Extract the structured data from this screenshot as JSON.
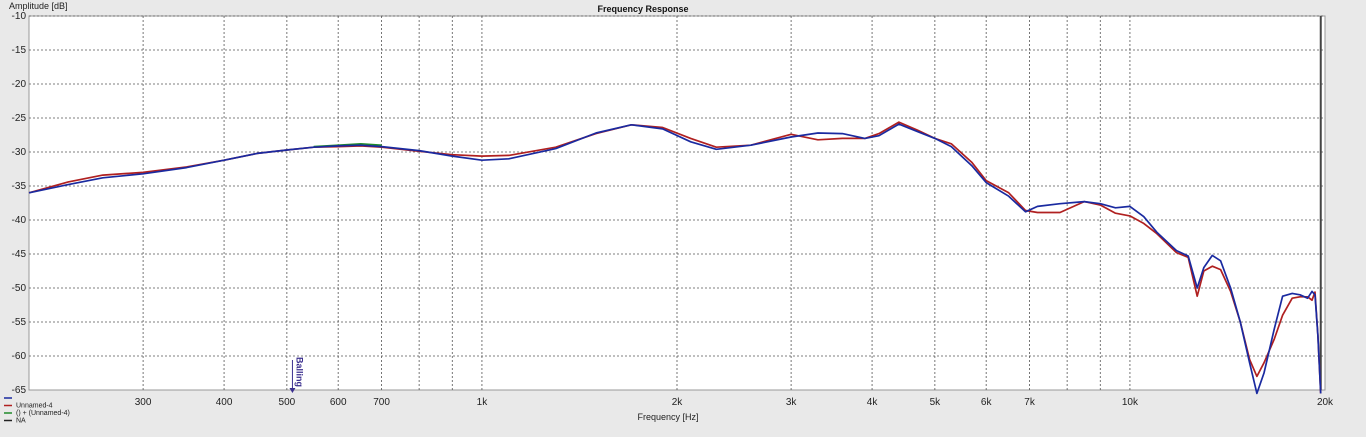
{
  "chart_data": {
    "type": "line",
    "title": "Frequency Response",
    "xlabel": "Frequency [Hz]",
    "ylabel": "Amplitude [dB]",
    "x_scale": "log",
    "xlim": [
      200,
      20000
    ],
    "ylim": [
      -65,
      -10
    ],
    "grid": true,
    "legend_position": "bottom-left",
    "x_ticks": [
      {
        "value": 300,
        "label": "300"
      },
      {
        "value": 400,
        "label": "400"
      },
      {
        "value": 500,
        "label": "500"
      },
      {
        "value": 600,
        "label": "600"
      },
      {
        "value": 700,
        "label": "700"
      },
      {
        "value": 1000,
        "label": "1k"
      },
      {
        "value": 2000,
        "label": "2k"
      },
      {
        "value": 3000,
        "label": "3k"
      },
      {
        "value": 4000,
        "label": "4k"
      },
      {
        "value": 5000,
        "label": "5k"
      },
      {
        "value": 6000,
        "label": "6k"
      },
      {
        "value": 7000,
        "label": "7k"
      },
      {
        "value": 10000,
        "label": "10k"
      },
      {
        "value": 20000,
        "label": "20k"
      }
    ],
    "x_minor_grid": [
      800,
      900,
      8000,
      9000
    ],
    "y_ticks": [
      -10,
      -15,
      -20,
      -25,
      -30,
      -35,
      -40,
      -45,
      -50,
      -55,
      -60,
      -65
    ],
    "series": [
      {
        "name": "",
        "color": "#1a2aa0",
        "points": [
          [
            200,
            -36
          ],
          [
            230,
            -34.8
          ],
          [
            260,
            -33.8
          ],
          [
            300,
            -33.2
          ],
          [
            350,
            -32.3
          ],
          [
            400,
            -31.2
          ],
          [
            450,
            -30.2
          ],
          [
            500,
            -29.7
          ],
          [
            550,
            -29.3
          ],
          [
            600,
            -29.1
          ],
          [
            650,
            -29.0
          ],
          [
            700,
            -29.2
          ],
          [
            800,
            -29.8
          ],
          [
            900,
            -30.6
          ],
          [
            1000,
            -31.2
          ],
          [
            1100,
            -31.0
          ],
          [
            1300,
            -29.5
          ],
          [
            1500,
            -27.2
          ],
          [
            1700,
            -26.0
          ],
          [
            1900,
            -26.6
          ],
          [
            2100,
            -28.5
          ],
          [
            2300,
            -29.6
          ],
          [
            2600,
            -29.0
          ],
          [
            3000,
            -27.8
          ],
          [
            3300,
            -27.2
          ],
          [
            3600,
            -27.3
          ],
          [
            3900,
            -28.0
          ],
          [
            4100,
            -27.6
          ],
          [
            4400,
            -25.9
          ],
          [
            4700,
            -27.0
          ],
          [
            5000,
            -28.0
          ],
          [
            5300,
            -29.2
          ],
          [
            5700,
            -32.0
          ],
          [
            6000,
            -34.5
          ],
          [
            6500,
            -36.5
          ],
          [
            6900,
            -38.8
          ],
          [
            7200,
            -38.0
          ],
          [
            7800,
            -37.6
          ],
          [
            8500,
            -37.3
          ],
          [
            9000,
            -37.6
          ],
          [
            9500,
            -38.2
          ],
          [
            10000,
            -38.0
          ],
          [
            10500,
            -39.5
          ],
          [
            11000,
            -41.8
          ],
          [
            11800,
            -44.5
          ],
          [
            12300,
            -45.3
          ],
          [
            12700,
            -50.0
          ],
          [
            13000,
            -47.0
          ],
          [
            13400,
            -45.2
          ],
          [
            13800,
            -46.0
          ],
          [
            14300,
            -50.0
          ],
          [
            14800,
            -55.0
          ],
          [
            15300,
            -61.0
          ],
          [
            15700,
            -66.0
          ],
          [
            16100,
            -62.5
          ],
          [
            16700,
            -56.0
          ],
          [
            17200,
            -51.2
          ],
          [
            17800,
            -50.8
          ],
          [
            18300,
            -51.0
          ],
          [
            18800,
            -51.5
          ],
          [
            19100,
            -50.5
          ],
          [
            19300,
            -51.0
          ],
          [
            19500,
            -57.0
          ],
          [
            19700,
            -66.0
          ]
        ]
      },
      {
        "name": "Unnamed-4",
        "color": "#b02020",
        "points": [
          [
            200,
            -36
          ],
          [
            230,
            -34.4
          ],
          [
            260,
            -33.4
          ],
          [
            300,
            -33.0
          ],
          [
            350,
            -32.2
          ],
          [
            400,
            -31.2
          ],
          [
            450,
            -30.2
          ],
          [
            500,
            -29.7
          ],
          [
            550,
            -29.3
          ],
          [
            600,
            -29.2
          ],
          [
            650,
            -29.1
          ],
          [
            700,
            -29.3
          ],
          [
            800,
            -29.9
          ],
          [
            900,
            -30.4
          ],
          [
            1000,
            -30.6
          ],
          [
            1100,
            -30.5
          ],
          [
            1300,
            -29.3
          ],
          [
            1500,
            -27.3
          ],
          [
            1700,
            -26.0
          ],
          [
            1900,
            -26.4
          ],
          [
            2100,
            -28.0
          ],
          [
            2300,
            -29.3
          ],
          [
            2600,
            -29.0
          ],
          [
            3000,
            -27.4
          ],
          [
            3300,
            -28.2
          ],
          [
            3600,
            -28.0
          ],
          [
            3900,
            -28.0
          ],
          [
            4100,
            -27.3
          ],
          [
            4400,
            -25.6
          ],
          [
            4700,
            -26.8
          ],
          [
            5000,
            -28.0
          ],
          [
            5300,
            -28.8
          ],
          [
            5700,
            -31.5
          ],
          [
            6000,
            -34.2
          ],
          [
            6500,
            -36.0
          ],
          [
            6900,
            -38.6
          ],
          [
            7200,
            -38.9
          ],
          [
            7800,
            -38.9
          ],
          [
            8500,
            -37.3
          ],
          [
            9000,
            -37.8
          ],
          [
            9500,
            -39.0
          ],
          [
            10000,
            -39.4
          ],
          [
            10500,
            -40.5
          ],
          [
            11000,
            -42.0
          ],
          [
            11800,
            -44.8
          ],
          [
            12300,
            -45.5
          ],
          [
            12700,
            -51.2
          ],
          [
            13000,
            -47.5
          ],
          [
            13400,
            -46.8
          ],
          [
            13800,
            -47.3
          ],
          [
            14300,
            -50.5
          ],
          [
            14800,
            -55.0
          ],
          [
            15300,
            -60.5
          ],
          [
            15700,
            -63.0
          ],
          [
            16100,
            -61.0
          ],
          [
            16700,
            -57.5
          ],
          [
            17200,
            -54.0
          ],
          [
            17800,
            -51.5
          ],
          [
            18300,
            -51.3
          ],
          [
            18800,
            -51.3
          ],
          [
            19100,
            -51.8
          ],
          [
            19300,
            -50.6
          ],
          [
            19500,
            -57.0
          ],
          [
            19700,
            -66.0
          ]
        ]
      },
      {
        "name": "() + (Unnamed-4)",
        "color": "#1f8a2a",
        "points": [
          [
            550,
            -29.2
          ],
          [
            600,
            -29.0
          ],
          [
            650,
            -28.8
          ],
          [
            700,
            -29.0
          ]
        ]
      },
      {
        "name": "NA",
        "color": "#222222",
        "points": []
      }
    ],
    "vertical_line": {
      "x": 19700,
      "color": "#444444"
    },
    "marker": {
      "x": 510,
      "label": "Balling"
    }
  }
}
